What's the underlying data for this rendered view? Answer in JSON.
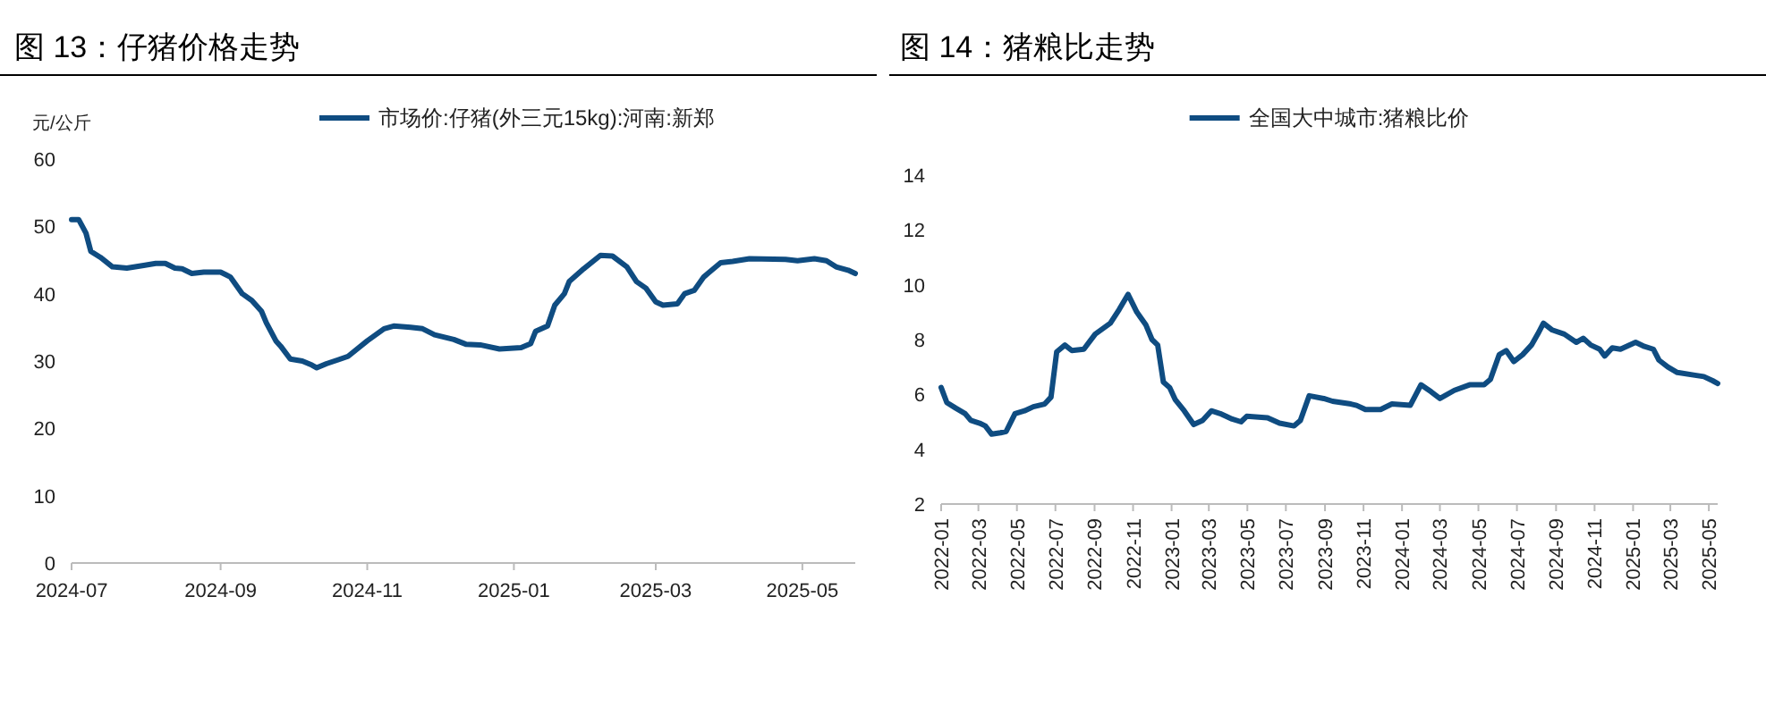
{
  "chart_data": [
    {
      "type": "line",
      "title": "图 13：仔猪价格走势",
      "ylabel": "元/公斤",
      "legend": "top",
      "grid": false,
      "marker": "none",
      "line_style": "solid",
      "xlim": [
        "2024-07-01",
        "2025-05-23"
      ],
      "xticks": [
        "2024-07",
        "2024-09",
        "2024-11",
        "2025-01",
        "2025-03",
        "2025-05"
      ],
      "ylim": [
        0,
        60
      ],
      "yticks": [
        0,
        10,
        20,
        30,
        40,
        50,
        60
      ],
      "series": [
        {
          "name": "市场价:仔猪(外三元15kg):河南:新郑",
          "color": "#0f4c81",
          "x": [
            "2024-07-01",
            "2024-07-04",
            "2024-07-07",
            "2024-07-09",
            "2024-07-13",
            "2024-07-18",
            "2024-07-24",
            "2024-07-31",
            "2024-08-05",
            "2024-08-09",
            "2024-08-13",
            "2024-08-16",
            "2024-08-20",
            "2024-08-25",
            "2024-09-01",
            "2024-09-05",
            "2024-09-10",
            "2024-09-14",
            "2024-09-18",
            "2024-09-20",
            "2024-09-24",
            "2024-09-26",
            "2024-09-30",
            "2024-10-05",
            "2024-10-09",
            "2024-10-11",
            "2024-10-15",
            "2024-10-20",
            "2024-10-24",
            "2024-11-01",
            "2024-11-08",
            "2024-11-12",
            "2024-11-19",
            "2024-11-24",
            "2024-11-29",
            "2024-12-07",
            "2024-12-12",
            "2024-12-18",
            "2024-12-26",
            "2025-01-04",
            "2025-01-08",
            "2025-01-10",
            "2025-01-15",
            "2025-01-18",
            "2025-01-22",
            "2025-01-24",
            "2025-01-30",
            "2025-02-06",
            "2025-02-11",
            "2025-02-17",
            "2025-02-21",
            "2025-02-25",
            "2025-03-01",
            "2025-03-04",
            "2025-03-10",
            "2025-03-13",
            "2025-03-17",
            "2025-03-21",
            "2025-03-23",
            "2025-03-28",
            "2025-04-02",
            "2025-04-09",
            "2025-04-24",
            "2025-04-29",
            "2025-05-06",
            "2025-05-11",
            "2025-05-15",
            "2025-05-20",
            "2025-05-23"
          ],
          "values": [
            51,
            51,
            49,
            46.3,
            45.4,
            44,
            43.8,
            44.2,
            44.5,
            44.5,
            43.8,
            43.7,
            43,
            43.2,
            43.2,
            42.5,
            40,
            39,
            37.4,
            35.7,
            33,
            32.2,
            30.3,
            30,
            29.4,
            29,
            29.6,
            30.2,
            30.7,
            33,
            34.8,
            35.2,
            35,
            34.8,
            33.9,
            33.2,
            32.5,
            32.4,
            31.8,
            32,
            32.6,
            34.4,
            35.2,
            38.3,
            40,
            41.8,
            43.7,
            45.7,
            45.6,
            44,
            41.8,
            40.8,
            38.8,
            38.3,
            38.5,
            40,
            40.5,
            42.5,
            43.1,
            44.6,
            44.8,
            45.2,
            45.1,
            44.9,
            45.2,
            44.9,
            44,
            43.5,
            43
          ]
        }
      ]
    },
    {
      "type": "line",
      "title": "图 14：猪粮比走势",
      "legend": "top",
      "grid": false,
      "marker": "none",
      "line_style": "solid",
      "xlim": [
        "2022-01-01",
        "2025-05-15"
      ],
      "xticks": [
        "2022-01",
        "2022-03",
        "2022-05",
        "2022-07",
        "2022-09",
        "2022-11",
        "2023-01",
        "2023-03",
        "2023-05",
        "2023-07",
        "2023-09",
        "2023-11",
        "2024-01",
        "2024-03",
        "2024-05",
        "2024-07",
        "2024-09",
        "2024-11",
        "2025-01",
        "2025-03",
        "2025-05"
      ],
      "ylim": [
        2,
        14
      ],
      "yticks": [
        2,
        4,
        6,
        8,
        10,
        12,
        14
      ],
      "series": [
        {
          "name": "全国大中城市:猪粮比价",
          "color": "#0f4c81",
          "x": [
            "2022-01-01",
            "2022-01-10",
            "2022-01-24",
            "2022-02-08",
            "2022-02-17",
            "2022-03-03",
            "2022-03-12",
            "2022-03-22",
            "2022-04-05",
            "2022-04-14",
            "2022-04-28",
            "2022-05-13",
            "2022-05-27",
            "2022-06-14",
            "2022-06-24",
            "2022-07-03",
            "2022-07-16",
            "2022-07-27",
            "2022-08-15",
            "2022-09-02",
            "2022-09-26",
            "2022-10-10",
            "2022-10-24",
            "2022-11-07",
            "2022-11-21",
            "2022-12-01",
            "2022-12-10",
            "2022-12-19",
            "2022-12-29",
            "2023-01-07",
            "2023-01-21",
            "2023-02-05",
            "2023-02-19",
            "2023-03-05",
            "2023-03-19",
            "2023-04-07",
            "2023-04-21",
            "2023-04-30",
            "2023-06-02",
            "2023-06-21",
            "2023-07-14",
            "2023-07-24",
            "2023-08-07",
            "2023-08-30",
            "2023-09-13",
            "2023-10-12",
            "2023-10-21",
            "2023-11-04",
            "2023-11-28",
            "2023-12-16",
            "2024-01-14",
            "2024-01-31",
            "2024-02-16",
            "2024-03-01",
            "2024-03-24",
            "2024-04-17",
            "2024-05-10",
            "2024-05-20",
            "2024-06-03",
            "2024-06-14",
            "2024-06-26",
            "2024-07-10",
            "2024-07-24",
            "2024-08-03",
            "2024-08-12",
            "2024-08-26",
            "2024-09-14",
            "2024-10-03",
            "2024-10-14",
            "2024-10-26",
            "2024-11-09",
            "2024-11-17",
            "2024-11-29",
            "2024-12-12",
            "2025-01-05",
            "2025-01-19",
            "2025-02-02",
            "2025-02-11",
            "2025-02-25",
            "2025-03-12",
            "2025-04-09",
            "2025-04-23",
            "2025-05-07",
            "2025-05-15"
          ],
          "values": [
            6.25,
            5.7,
            5.5,
            5.3,
            5.05,
            4.95,
            4.85,
            4.55,
            4.6,
            4.65,
            5.3,
            5.4,
            5.55,
            5.65,
            5.9,
            7.55,
            7.8,
            7.6,
            7.65,
            8.2,
            8.6,
            9.1,
            9.65,
            9,
            8.55,
            8,
            7.8,
            6.45,
            6.25,
            5.8,
            5.4,
            4.9,
            5.05,
            5.4,
            5.3,
            5.1,
            5,
            5.2,
            5.15,
            4.95,
            4.85,
            5.05,
            5.95,
            5.85,
            5.75,
            5.65,
            5.6,
            5.45,
            5.45,
            5.65,
            5.6,
            6.35,
            6.1,
            5.85,
            6.15,
            6.35,
            6.35,
            6.55,
            7.45,
            7.6,
            7.2,
            7.45,
            7.8,
            8.2,
            8.6,
            8.35,
            8.2,
            7.9,
            8.05,
            7.8,
            7.65,
            7.4,
            7.7,
            7.65,
            7.9,
            7.75,
            7.65,
            7.25,
            7,
            6.8,
            6.7,
            6.65,
            6.5,
            6.4
          ]
        }
      ]
    }
  ]
}
